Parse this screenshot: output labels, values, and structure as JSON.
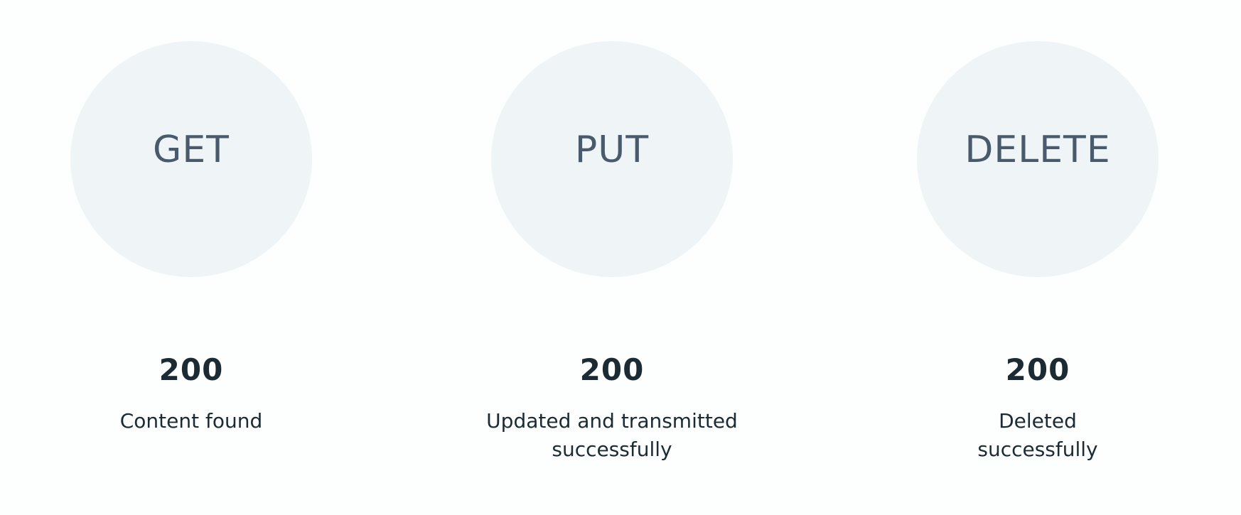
{
  "methods": [
    {
      "name": "GET",
      "status_code": "200",
      "description": "Content found"
    },
    {
      "name": "PUT",
      "status_code": "200",
      "description": "Updated and transmitted successfully"
    },
    {
      "name": "DELETE",
      "status_code": "200",
      "description": "Deleted successfully"
    }
  ],
  "colors": {
    "background": "#fdfefe",
    "circle_fill": "#eff4f6",
    "method_text": "#485a6b",
    "body_text": "#1c2b33"
  }
}
